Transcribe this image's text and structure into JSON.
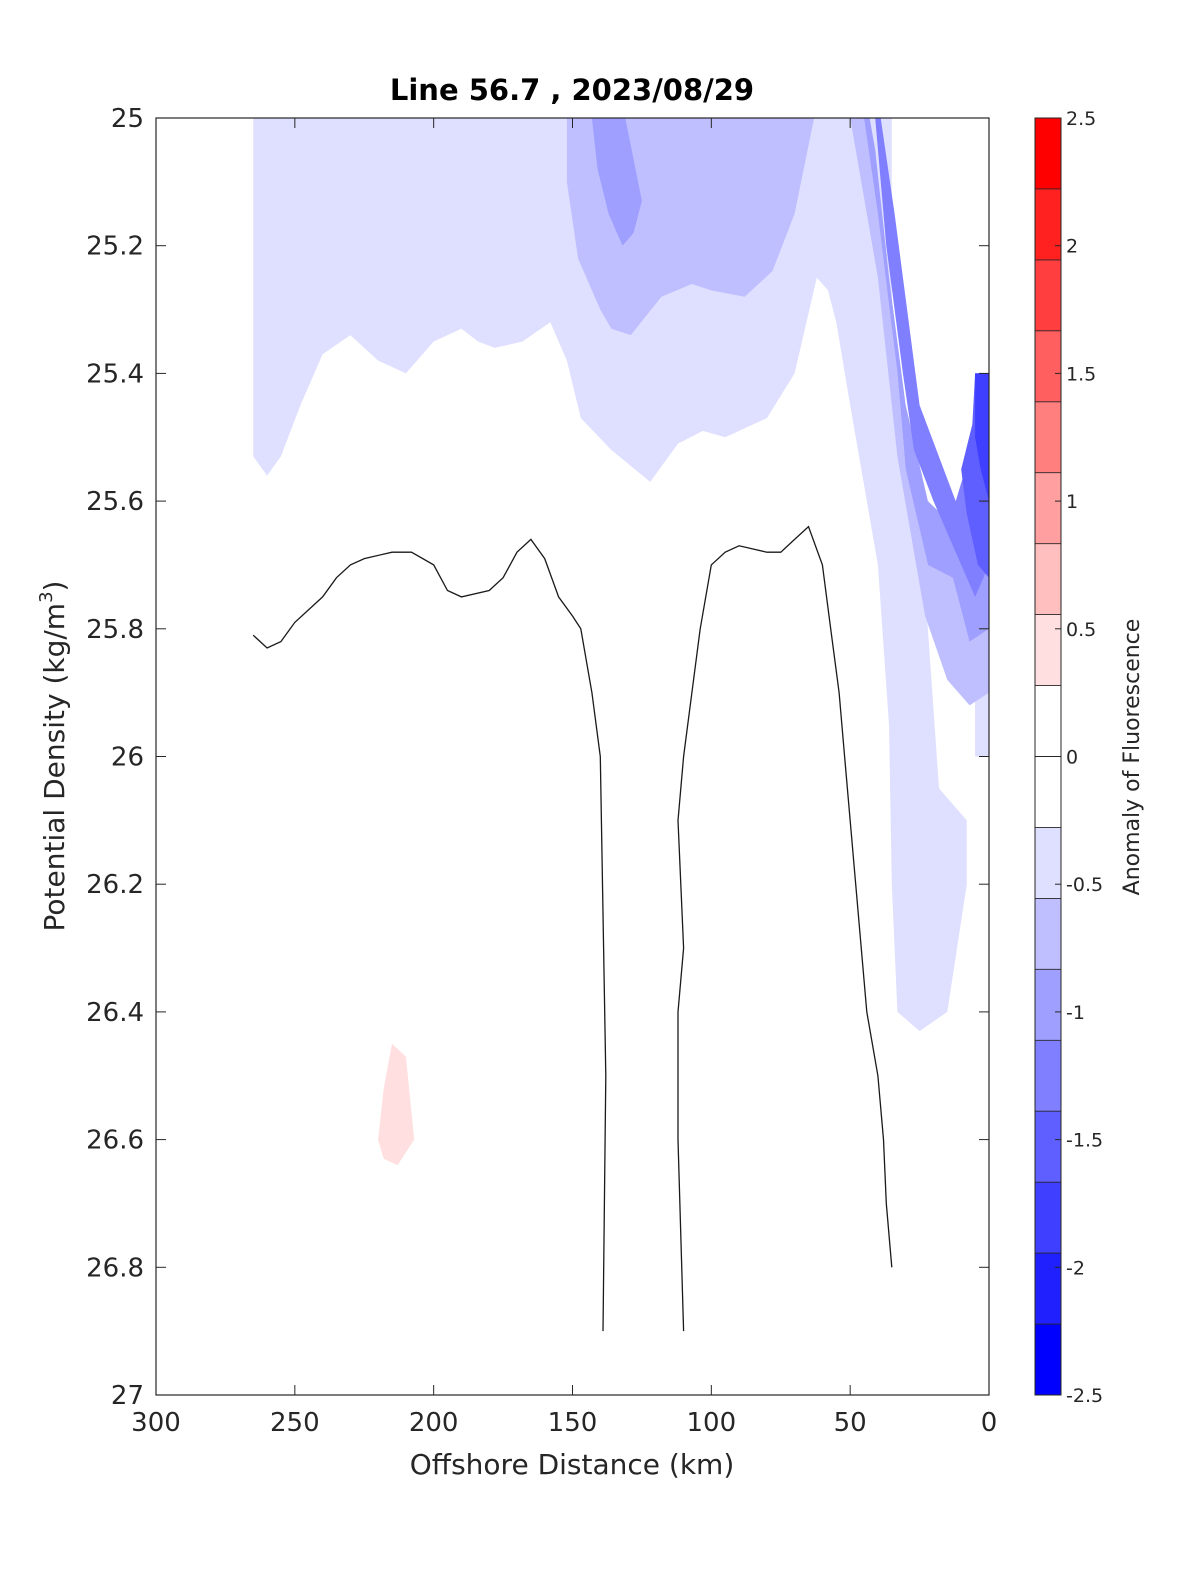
{
  "chart_data": {
    "type": "contour",
    "title": "Line 56.7 , 2023/08/29",
    "xlabel": "Offshore Distance (km)",
    "ylabel_main": "Potential Density (kg/m",
    "ylabel_sup": "3",
    "ylabel_close": ")",
    "xlim": [
      300,
      0
    ],
    "ylim": [
      25,
      27
    ],
    "x_reversed": true,
    "y_reversed": true,
    "xticks": [
      300,
      250,
      200,
      150,
      100,
      50,
      0
    ],
    "yticks": [
      25,
      25.2,
      25.4,
      25.6,
      25.8,
      26,
      26.2,
      26.4,
      26.6,
      26.8,
      27
    ],
    "ytick_labels": [
      "25",
      "25.2",
      "25.4",
      "25.6",
      "25.8",
      "26",
      "26.2",
      "26.4",
      "26.6",
      "26.8",
      "27"
    ],
    "colorbar": {
      "label": "Anomaly of Fluorescence",
      "range": [
        -2.5,
        2.5
      ],
      "level_step": 0.25,
      "ticks": [
        2.5,
        2,
        1.5,
        1,
        0.5,
        0,
        -0.5,
        -1,
        -1.5,
        -2,
        -2.5
      ],
      "tick_labels": [
        "2.5",
        "2",
        "1.5",
        "1",
        "0.5",
        "0",
        "-0.5",
        "-1",
        "-1.5",
        "-2",
        "-2.5"
      ],
      "colors_top_to_bottom": [
        "#ff0000",
        "#ff2020",
        "#ff3f3f",
        "#ff5f5f",
        "#ff7f7f",
        "#ff9f9f",
        "#ffbfbf",
        "#ffdfdf",
        "#ffffff",
        "#ffffff",
        "#dfdfff",
        "#bfbfff",
        "#9f9fff",
        "#7f7fff",
        "#5f5fff",
        "#3f3fff",
        "#2020ff",
        "#0000ff"
      ]
    },
    "filled_regions": [
      {
        "level": -0.25,
        "color": "#dfdfff",
        "points": [
          [
            265,
            25
          ],
          [
            35,
            25
          ],
          [
            35,
            25.45
          ],
          [
            26,
            25.6
          ],
          [
            22,
            25.8
          ],
          [
            18,
            26.05
          ],
          [
            8,
            26.1
          ],
          [
            8,
            26.2
          ],
          [
            15,
            26.4
          ],
          [
            25,
            26.43
          ],
          [
            33,
            26.4
          ],
          [
            35,
            26.2
          ],
          [
            36,
            25.95
          ],
          [
            40,
            25.7
          ],
          [
            50,
            25.45
          ],
          [
            55,
            25.32
          ],
          [
            58,
            25.27
          ],
          [
            62,
            25.25
          ],
          [
            70,
            25.4
          ],
          [
            80,
            25.47
          ],
          [
            95,
            25.5
          ],
          [
            103,
            25.49
          ],
          [
            112,
            25.51
          ],
          [
            122,
            25.57
          ],
          [
            136,
            25.52
          ],
          [
            147,
            25.47
          ],
          [
            152,
            25.38
          ],
          [
            158,
            25.32
          ],
          [
            168,
            25.35
          ],
          [
            178,
            25.36
          ],
          [
            184,
            25.35
          ],
          [
            190,
            25.33
          ],
          [
            200,
            25.35
          ],
          [
            210,
            25.4
          ],
          [
            220,
            25.38
          ],
          [
            230,
            25.34
          ],
          [
            240,
            25.37
          ],
          [
            248,
            25.45
          ],
          [
            255,
            25.53
          ],
          [
            260,
            25.56
          ],
          [
            265,
            25.53
          ]
        ]
      },
      {
        "level": -0.25,
        "color": "#dfdfff",
        "points": [
          [
            5,
            25.4
          ],
          [
            0,
            25.4
          ],
          [
            0,
            26.0
          ],
          [
            5,
            26.0
          ]
        ]
      },
      {
        "level": -0.5,
        "color": "#bfbfff",
        "points": [
          [
            152,
            25
          ],
          [
            63,
            25
          ],
          [
            70,
            25.15
          ],
          [
            78,
            25.24
          ],
          [
            88,
            25.28
          ],
          [
            100,
            25.27
          ],
          [
            107,
            25.26
          ],
          [
            118,
            25.28
          ],
          [
            129,
            25.34
          ],
          [
            136,
            25.33
          ],
          [
            140,
            25.3
          ],
          [
            148,
            25.22
          ],
          [
            152,
            25.1
          ]
        ]
      },
      {
        "level": -0.5,
        "color": "#bfbfff",
        "points": [
          [
            50,
            25
          ],
          [
            40,
            25.25
          ],
          [
            33,
            25.53
          ],
          [
            27,
            25.68
          ],
          [
            23,
            25.78
          ],
          [
            15,
            25.88
          ],
          [
            7,
            25.92
          ],
          [
            0,
            25.9
          ],
          [
            0,
            25.4
          ],
          [
            5,
            25.4
          ],
          [
            5,
            25.55
          ],
          [
            10,
            25.7
          ],
          [
            22,
            25.7
          ],
          [
            30,
            25.55
          ],
          [
            33,
            25.4
          ],
          [
            40,
            25.15
          ],
          [
            45,
            25
          ]
        ]
      },
      {
        "level": -0.75,
        "color": "#9f9fff",
        "points": [
          [
            143,
            25
          ],
          [
            131,
            25
          ],
          [
            125,
            25.13
          ],
          [
            128,
            25.18
          ],
          [
            132,
            25.2
          ],
          [
            137,
            25.15
          ],
          [
            141,
            25.08
          ]
        ]
      },
      {
        "level": -0.75,
        "color": "#9f9fff",
        "points": [
          [
            45,
            25
          ],
          [
            40,
            25.15
          ],
          [
            33,
            25.4
          ],
          [
            30,
            25.55
          ],
          [
            22,
            25.7
          ],
          [
            13,
            25.72
          ],
          [
            7,
            25.82
          ],
          [
            0,
            25.8
          ],
          [
            0,
            25.4
          ],
          [
            5,
            25.4
          ],
          [
            5,
            25.5
          ],
          [
            10,
            25.65
          ],
          [
            22,
            25.6
          ],
          [
            30,
            25.45
          ],
          [
            36,
            25.25
          ],
          [
            41,
            25.05
          ],
          [
            43,
            25
          ]
        ]
      },
      {
        "level": -1.0,
        "color": "#7f7fff",
        "points": [
          [
            41,
            25
          ],
          [
            37,
            25.2
          ],
          [
            31,
            25.4
          ],
          [
            27,
            25.52
          ],
          [
            20,
            25.6
          ],
          [
            10,
            25.7
          ],
          [
            5,
            25.75
          ],
          [
            0,
            25.7
          ],
          [
            0,
            25.4
          ],
          [
            5,
            25.4
          ],
          [
            5,
            25.5
          ],
          [
            12,
            25.6
          ],
          [
            25,
            25.45
          ],
          [
            34,
            25.15
          ],
          [
            39,
            25
          ]
        ]
      },
      {
        "level": -1.5,
        "color": "#5f5fff",
        "points": [
          [
            5,
            25.4
          ],
          [
            0,
            25.4
          ],
          [
            0,
            25.72
          ],
          [
            4,
            25.7
          ],
          [
            8,
            25.62
          ],
          [
            10,
            25.55
          ],
          [
            6,
            25.48
          ]
        ]
      },
      {
        "level": -2.0,
        "color": "#3f3fff",
        "points": [
          [
            5,
            25.4
          ],
          [
            0,
            25.4
          ],
          [
            0,
            25.6
          ],
          [
            3,
            25.55
          ],
          [
            5,
            25.5
          ]
        ]
      },
      {
        "level": 0.25,
        "color": "#ffdfdf",
        "points": [
          [
            215,
            26.45
          ],
          [
            210,
            26.47
          ],
          [
            207,
            26.6
          ],
          [
            213,
            26.64
          ],
          [
            218,
            26.63
          ],
          [
            220,
            26.6
          ],
          [
            218,
            26.52
          ]
        ]
      }
    ],
    "contour_lines": [
      {
        "points": [
          [
            265,
            25.81
          ],
          [
            260,
            25.83
          ],
          [
            255,
            25.82
          ],
          [
            250,
            25.79
          ],
          [
            240,
            25.75
          ],
          [
            235,
            25.72
          ],
          [
            230,
            25.7
          ],
          [
            225,
            25.69
          ],
          [
            215,
            25.68
          ],
          [
            208,
            25.68
          ],
          [
            200,
            25.7
          ],
          [
            195,
            25.74
          ],
          [
            190,
            25.75
          ],
          [
            180,
            25.74
          ],
          [
            175,
            25.72
          ],
          [
            170,
            25.68
          ],
          [
            165,
            25.66
          ],
          [
            160,
            25.69
          ],
          [
            155,
            25.75
          ],
          [
            150,
            25.78
          ],
          [
            147,
            25.8
          ],
          [
            143,
            25.9
          ],
          [
            140,
            26.0
          ],
          [
            138,
            26.5
          ],
          [
            139,
            26.9
          ]
        ]
      },
      {
        "points": [
          [
            110,
            26.9
          ],
          [
            112,
            26.6
          ],
          [
            112,
            26.4
          ],
          [
            110,
            26.3
          ],
          [
            112,
            26.1
          ],
          [
            110,
            26.0
          ],
          [
            107,
            25.9
          ],
          [
            104,
            25.8
          ],
          [
            100,
            25.7
          ],
          [
            95,
            25.68
          ],
          [
            90,
            25.67
          ],
          [
            80,
            25.68
          ],
          [
            75,
            25.68
          ],
          [
            70,
            25.66
          ],
          [
            65,
            25.64
          ],
          [
            60,
            25.7
          ],
          [
            57,
            25.8
          ],
          [
            54,
            25.9
          ],
          [
            52,
            26.0
          ],
          [
            48,
            26.2
          ],
          [
            44,
            26.4
          ],
          [
            40,
            26.5
          ],
          [
            38,
            26.6
          ],
          [
            37,
            26.7
          ],
          [
            35,
            26.8
          ]
        ]
      }
    ]
  }
}
